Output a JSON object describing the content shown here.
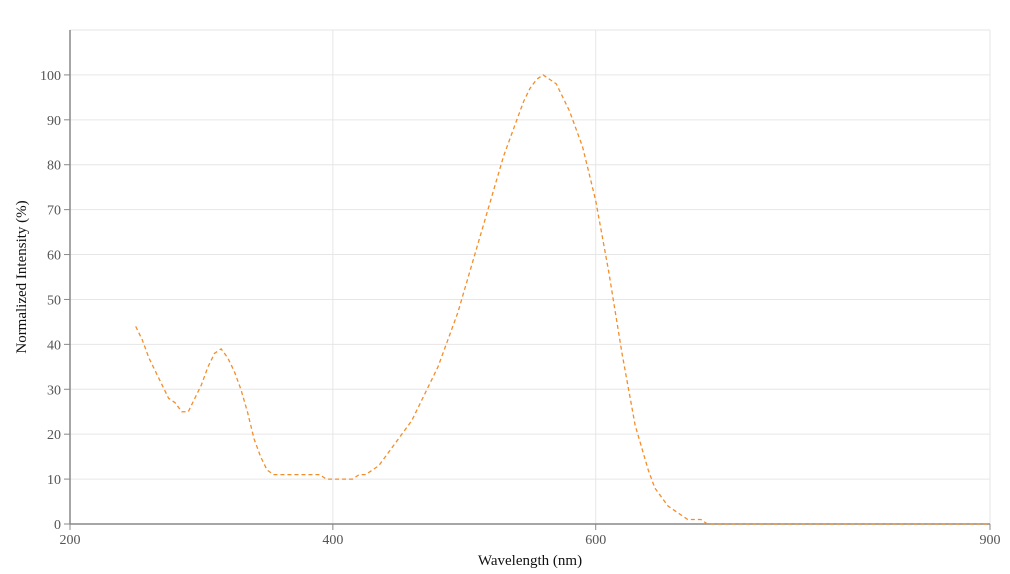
{
  "chart_data": {
    "type": "line",
    "title": "",
    "xlabel": "Wavelength (nm)",
    "ylabel": "Normalized Intensity (%)",
    "xlim": [
      200,
      900
    ],
    "ylim": [
      0,
      110
    ],
    "xticks": [
      200,
      400,
      600,
      900
    ],
    "xtick_labels": [
      "200",
      "400",
      "600",
      "900"
    ],
    "yticks": [
      0,
      10,
      20,
      30,
      40,
      50,
      60,
      70,
      80,
      90,
      100
    ],
    "ytick_labels": [
      "0",
      "10",
      "20",
      "30",
      "40",
      "50",
      "60",
      "70",
      "80",
      "90",
      "100"
    ],
    "grid": true,
    "legend": "none",
    "series": [
      {
        "color": "#f28e2b",
        "style": "dashed",
        "x": [
          250,
          255,
          260,
          265,
          270,
          275,
          280,
          285,
          290,
          295,
          300,
          305,
          310,
          315,
          320,
          325,
          330,
          335,
          340,
          345,
          350,
          355,
          360,
          365,
          370,
          375,
          380,
          385,
          390,
          395,
          400,
          405,
          410,
          415,
          420,
          425,
          430,
          435,
          440,
          445,
          450,
          455,
          460,
          465,
          470,
          475,
          480,
          485,
          490,
          495,
          500,
          505,
          510,
          515,
          520,
          525,
          530,
          535,
          540,
          545,
          550,
          555,
          560,
          565,
          570,
          575,
          580,
          585,
          590,
          595,
          600,
          605,
          610,
          615,
          620,
          625,
          630,
          635,
          640,
          645,
          650,
          655,
          660,
          665,
          670,
          675,
          680,
          685,
          690,
          695,
          700,
          705,
          710,
          715,
          720,
          725,
          730,
          735,
          740,
          745,
          750,
          760,
          780,
          800,
          820,
          840,
          860,
          880,
          900
        ],
        "y": [
          44,
          41,
          37,
          34,
          31,
          28,
          27,
          25,
          25,
          28,
          31,
          35,
          38,
          39,
          37,
          34,
          30,
          25,
          19,
          15,
          12,
          11,
          11,
          11,
          11,
          11,
          11,
          11,
          11,
          10,
          10,
          10,
          10,
          10,
          11,
          11,
          12,
          13,
          15,
          17,
          19,
          21,
          23,
          26,
          29,
          32,
          35,
          39,
          43,
          47,
          52,
          57,
          62,
          67,
          72,
          77,
          82,
          86,
          90,
          94,
          97,
          99,
          100,
          99,
          98,
          95,
          92,
          88,
          84,
          78,
          72,
          64,
          56,
          47,
          38,
          30,
          22,
          17,
          12,
          8,
          6,
          4,
          3,
          2,
          1,
          1,
          1,
          0,
          0,
          0,
          0,
          0,
          0,
          0,
          0,
          0,
          0,
          0,
          0,
          0,
          0,
          0,
          0,
          0,
          0,
          0,
          0,
          0,
          0
        ]
      }
    ]
  }
}
